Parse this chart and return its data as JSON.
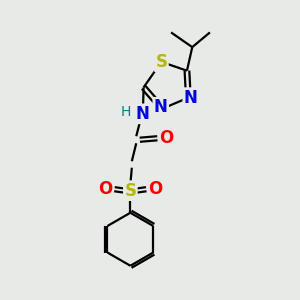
{
  "bg_color": "#e8eae8",
  "bond_color": "#000000",
  "bond_width": 1.6,
  "atom_colors": {
    "S_sulfonyl": "#b8b800",
    "S_thiadiazol": "#b8b800",
    "N": "#0000e0",
    "O": "#ff0000",
    "NH": "#0000e0",
    "H": "#008080",
    "C": "#000000"
  },
  "font_size": 11
}
